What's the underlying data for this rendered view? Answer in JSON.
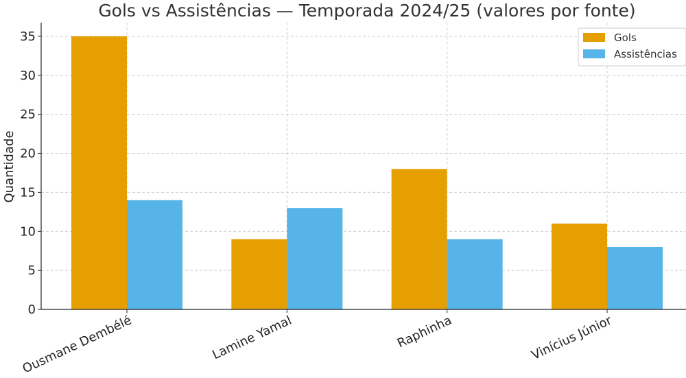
{
  "chart_data": {
    "type": "bar",
    "title": "Gols vs Assistências — Temporada 2024/25 (valores por fonte)",
    "xlabel": "",
    "ylabel": "Quantidade",
    "categories": [
      "Ousmane Dembélé",
      "Lamine Yamal",
      "Raphinha",
      "Vinícius Júnior"
    ],
    "series": [
      {
        "name": "Gols",
        "values": [
          35,
          9,
          18,
          11
        ],
        "color": "#E69F00"
      },
      {
        "name": "Assistências",
        "values": [
          14,
          13,
          9,
          8
        ],
        "color": "#56B4E9"
      }
    ],
    "ylim": [
      0,
      36.75
    ],
    "yticks": [
      0,
      5,
      10,
      15,
      20,
      25,
      30,
      35
    ],
    "grid": true,
    "legend_position": "top-right"
  }
}
